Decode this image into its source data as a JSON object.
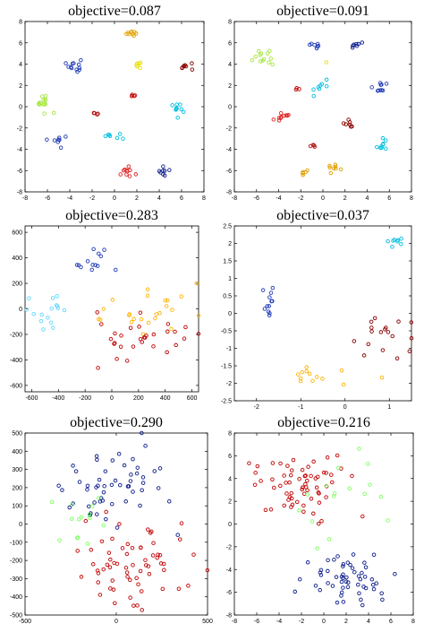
{
  "chart_data": [
    {
      "type": "scatter",
      "title": "objective=0.087",
      "xlim": [
        -8,
        8
      ],
      "ylim": [
        -8,
        8
      ],
      "xticks": [
        -8,
        -6,
        -4,
        -2,
        0,
        2,
        4,
        6,
        8
      ],
      "yticks": [
        -8,
        -6,
        -4,
        -2,
        0,
        2,
        4,
        6,
        8
      ],
      "legend": "none",
      "clusters": [
        {
          "color": "#e0a000",
          "center": [
            1.6,
            6.9
          ],
          "spread": [
            0.25,
            0.2
          ],
          "n": 9
        },
        {
          "color": "#1f3bb5",
          "center": [
            -3.6,
            3.9
          ],
          "spread": [
            0.3,
            0.3
          ],
          "n": 12
        },
        {
          "color": "#e8e000",
          "center": [
            2.0,
            3.9
          ],
          "spread": [
            0.2,
            0.2
          ],
          "n": 6
        },
        {
          "color": "#8b0000",
          "center": [
            6.4,
            3.8
          ],
          "spread": [
            0.3,
            0.2
          ],
          "n": 8
        },
        {
          "color": "#a6e640",
          "center": [
            -6.3,
            0.5
          ],
          "spread": [
            0.6,
            0.4
          ],
          "n": 14
        },
        {
          "color": "#c00000",
          "center": [
            1.8,
            1.1
          ],
          "spread": [
            0.15,
            0.15
          ],
          "n": 4
        },
        {
          "color": "#00bfe0",
          "center": [
            5.6,
            -0.3
          ],
          "spread": [
            0.35,
            0.35
          ],
          "n": 10
        },
        {
          "color": "#b01010",
          "center": [
            -1.8,
            -0.6
          ],
          "spread": [
            0.2,
            0.1
          ],
          "n": 4
        },
        {
          "color": "#1f3bb5",
          "center": [
            -5.0,
            -3.2
          ],
          "spread": [
            0.3,
            0.3
          ],
          "n": 8
        },
        {
          "color": "#00bfe0",
          "center": [
            -0.1,
            -2.6
          ],
          "spread": [
            0.35,
            0.25
          ],
          "n": 7
        },
        {
          "color": "#e02020",
          "center": [
            1.0,
            -6.1
          ],
          "spread": [
            0.35,
            0.3
          ],
          "n": 10
        },
        {
          "color": "#0a1a8a",
          "center": [
            4.4,
            -6.0
          ],
          "spread": [
            0.25,
            0.25
          ],
          "n": 8
        }
      ]
    },
    {
      "type": "scatter",
      "title": "objective=0.091",
      "xlim": [
        -8,
        8
      ],
      "ylim": [
        -8,
        8
      ],
      "xticks": [
        -8,
        -6,
        -4,
        -2,
        0,
        2,
        4,
        6,
        8
      ],
      "yticks": [
        -8,
        -6,
        -4,
        -2,
        0,
        2,
        4,
        6,
        8
      ],
      "legend": "none",
      "clusters": [
        {
          "color": "#1f3bb5",
          "center": [
            -0.8,
            5.8
          ],
          "spread": [
            0.3,
            0.2
          ],
          "n": 7
        },
        {
          "color": "#0a1a8a",
          "center": [
            2.9,
            5.8
          ],
          "spread": [
            0.25,
            0.2
          ],
          "n": 7
        },
        {
          "color": "#a6e640",
          "center": [
            -5.2,
            4.6
          ],
          "spread": [
            0.6,
            0.4
          ],
          "n": 13
        },
        {
          "color": "#e8e000",
          "center": [
            0.3,
            4.3
          ],
          "spread": [
            0.1,
            0.1
          ],
          "n": 1
        },
        {
          "color": "#00bfe0",
          "center": [
            -0.2,
            1.9
          ],
          "spread": [
            0.35,
            0.3
          ],
          "n": 8
        },
        {
          "color": "#1f3bb5",
          "center": [
            5.2,
            1.8
          ],
          "spread": [
            0.35,
            0.3
          ],
          "n": 10
        },
        {
          "color": "#c00000",
          "center": [
            -2.2,
            1.6
          ],
          "spread": [
            0.15,
            0.1
          ],
          "n": 3
        },
        {
          "color": "#e02020",
          "center": [
            -3.7,
            -0.9
          ],
          "spread": [
            0.3,
            0.3
          ],
          "n": 10
        },
        {
          "color": "#8b0000",
          "center": [
            2.3,
            -1.6
          ],
          "spread": [
            0.2,
            0.25
          ],
          "n": 7
        },
        {
          "color": "#b01010",
          "center": [
            -0.9,
            -3.6
          ],
          "spread": [
            0.15,
            0.15
          ],
          "n": 4
        },
        {
          "color": "#00bfe0",
          "center": [
            5.4,
            -3.6
          ],
          "spread": [
            0.3,
            0.3
          ],
          "n": 9
        },
        {
          "color": "#e0a000",
          "center": [
            -1.8,
            -6.2
          ],
          "spread": [
            0.3,
            0.15
          ],
          "n": 6
        },
        {
          "color": "#e0a000",
          "center": [
            1.0,
            -5.8
          ],
          "spread": [
            0.35,
            0.25
          ],
          "n": 8
        }
      ]
    },
    {
      "type": "scatter",
      "title": "objective=0.283",
      "xlim": [
        -650,
        650
      ],
      "ylim": [
        -650,
        650
      ],
      "xticks": [
        -600,
        -400,
        -200,
        0,
        200,
        400,
        600
      ],
      "yticks": [
        -600,
        -400,
        -200,
        0,
        200,
        400,
        600
      ],
      "legend": "none",
      "clusters": [
        {
          "color": "#1f3bb5",
          "center": [
            -110,
            370
          ],
          "spread": [
            120,
            70
          ],
          "n": 13
        },
        {
          "color": "#5fd8ff",
          "center": [
            -440,
            20
          ],
          "spread": [
            130,
            100
          ],
          "n": 16
        },
        {
          "color": "#ffb400",
          "center": [
            280,
            -30
          ],
          "spread": [
            190,
            90
          ],
          "n": 24
        },
        {
          "color": "#c00000",
          "center": [
            180,
            -220
          ],
          "spread": [
            230,
            110
          ],
          "n": 30
        }
      ]
    },
    {
      "type": "scatter",
      "title": "objective=0.037",
      "xlim": [
        -2.5,
        1.5
      ],
      "ylim": [
        -2.5,
        2.5
      ],
      "xticks": [
        -2,
        -1,
        0,
        1
      ],
      "yticks": [
        -2.5,
        -2,
        -1.5,
        -1,
        -0.5,
        0,
        0.5,
        1,
        1.5,
        2,
        2.5
      ],
      "legend": "none",
      "clusters": [
        {
          "color": "#00bfe0",
          "center": [
            1.1,
            2.05
          ],
          "spread": [
            0.18,
            0.08
          ],
          "n": 8
        },
        {
          "color": "#1f3bb5",
          "center": [
            -1.72,
            0.3
          ],
          "spread": [
            0.08,
            0.25
          ],
          "n": 12
        },
        {
          "color": "#8b0000",
          "center": [
            0.7,
            -0.7
          ],
          "spread": [
            0.4,
            0.35
          ],
          "n": 18
        },
        {
          "color": "#ffb400",
          "center": [
            -0.7,
            -1.85
          ],
          "spread": [
            0.55,
            0.15
          ],
          "n": 13
        }
      ]
    },
    {
      "type": "scatter",
      "title": "objective=0.290",
      "xlim": [
        -500,
        500
      ],
      "ylim": [
        -500,
        500
      ],
      "xticks": [
        -500,
        0,
        500
      ],
      "yticks": [
        -500,
        -400,
        -300,
        -200,
        -100,
        0,
        100,
        200,
        300,
        400,
        500
      ],
      "legend": "none",
      "clusters": [
        {
          "color": "#0a1a8a",
          "center": [
            0,
            220
          ],
          "spread": [
            140,
            130
          ],
          "n": 55
        },
        {
          "color": "#c00000",
          "center": [
            60,
            -200
          ],
          "spread": [
            150,
            130
          ],
          "n": 65
        },
        {
          "color": "#7dff60",
          "center": [
            -150,
            20
          ],
          "spread": [
            160,
            120
          ],
          "n": 14
        }
      ]
    },
    {
      "type": "scatter",
      "title": "objective=0.216",
      "xlim": [
        -8,
        8
      ],
      "ylim": [
        -8,
        8
      ],
      "xticks": [
        -8,
        -6,
        -4,
        -2,
        0,
        2,
        4,
        6,
        8
      ],
      "yticks": [
        -8,
        -6,
        -4,
        -2,
        0,
        2,
        4,
        6,
        8
      ],
      "legend": "none",
      "clusters": [
        {
          "color": "#c00000",
          "center": [
            -2.3,
            3.5
          ],
          "spread": [
            2.3,
            1.5
          ],
          "n": 65
        },
        {
          "color": "#0a1a8a",
          "center": [
            1.6,
            -4.7
          ],
          "spread": [
            1.9,
            1.2
          ],
          "n": 55
        },
        {
          "color": "#7dff60",
          "center": [
            1.0,
            0.5
          ],
          "spread": [
            3.0,
            3.0
          ],
          "n": 16
        }
      ]
    }
  ]
}
